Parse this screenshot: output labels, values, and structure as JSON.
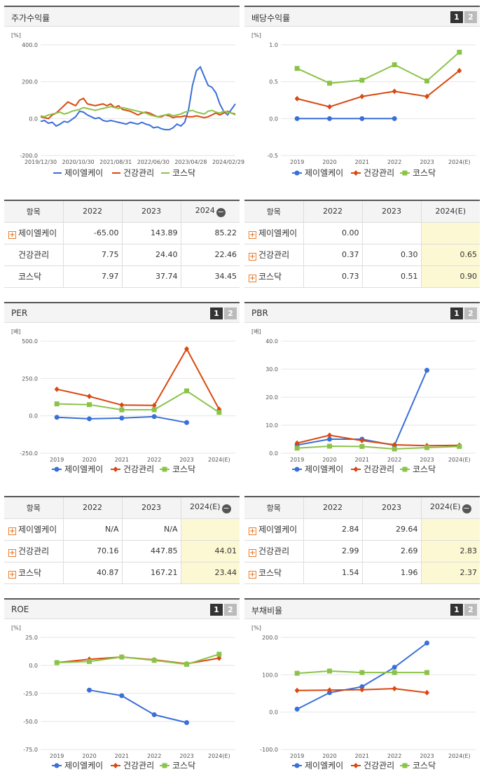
{
  "ui": {
    "btn1": "1",
    "btn2": "2",
    "pct_unit": "[%]",
    "times_unit": "[배]",
    "row_header": "항목",
    "plus": "+",
    "minus": "−"
  },
  "chart_data": [
    {
      "id": "stock",
      "type": "line",
      "title": "주가수익률",
      "yunit": "[%]",
      "ylim": [
        -200,
        400
      ],
      "yticks": [
        "400.0",
        "200.0",
        "0.0",
        "-200.0"
      ],
      "xticks": [
        "2019/12/30",
        "2020/10/30",
        "2021/08/31",
        "2022/06/30",
        "2023/04/28",
        "2024/02/29"
      ],
      "show_buttons": false,
      "series": [
        {
          "name": "제이엘케이",
          "color": "#3a6fd8",
          "marker": "none",
          "values": [
            -15,
            -10,
            -25,
            -20,
            -40,
            -30,
            -15,
            -20,
            -5,
            10,
            40,
            35,
            20,
            10,
            0,
            5,
            -10,
            -15,
            -10,
            -15,
            -20,
            -25,
            -30,
            -20,
            -25,
            -30,
            -20,
            -30,
            -35,
            -50,
            -45,
            -55,
            -60,
            -60,
            -50,
            -30,
            -40,
            -20,
            50,
            180,
            260,
            280,
            230,
            180,
            170,
            140,
            80,
            40,
            20,
            50,
            80
          ]
        },
        {
          "name": "건강관리",
          "color": "#d9480f",
          "marker": "none",
          "values": [
            10,
            5,
            0,
            20,
            30,
            50,
            70,
            90,
            80,
            70,
            100,
            110,
            80,
            75,
            70,
            75,
            80,
            70,
            80,
            60,
            70,
            50,
            45,
            40,
            30,
            20,
            30,
            35,
            30,
            20,
            10,
            10,
            20,
            15,
            5,
            10,
            10,
            15,
            10,
            10,
            15,
            10,
            5,
            10,
            20,
            30,
            20,
            30,
            40,
            30,
            25
          ]
        },
        {
          "name": "코스닥",
          "color": "#8bc34a",
          "marker": "none",
          "values": [
            15,
            10,
            20,
            25,
            30,
            35,
            25,
            30,
            40,
            45,
            50,
            60,
            55,
            50,
            45,
            50,
            55,
            60,
            65,
            60,
            55,
            60,
            55,
            50,
            45,
            40,
            35,
            30,
            20,
            15,
            10,
            15,
            20,
            25,
            15,
            20,
            25,
            35,
            40,
            45,
            35,
            30,
            25,
            40,
            45,
            35,
            30,
            40,
            35,
            30,
            20
          ]
        }
      ]
    },
    {
      "id": "dividend",
      "type": "line",
      "title": "배당수익률",
      "yunit": "[%]",
      "ylim": [
        -0.5,
        1.0
      ],
      "yticks": [
        "1.0",
        "0.5",
        "0.0",
        "-0.5"
      ],
      "xticks": [
        "2019",
        "2020",
        "2021",
        "2022",
        "2023",
        "2024(E)"
      ],
      "show_buttons": true,
      "series": [
        {
          "name": "제이엘케이",
          "color": "#3a6fd8",
          "marker": "circle",
          "values": [
            0,
            0,
            0,
            0,
            null,
            null
          ]
        },
        {
          "name": "건강관리",
          "color": "#d9480f",
          "marker": "diamond",
          "values": [
            0.27,
            0.16,
            0.3,
            0.37,
            0.3,
            0.65
          ]
        },
        {
          "name": "코스닥",
          "color": "#8bc34a",
          "marker": "square",
          "values": [
            0.68,
            0.48,
            0.52,
            0.73,
            0.51,
            0.9
          ]
        }
      ]
    },
    {
      "id": "per",
      "type": "line",
      "title": "PER",
      "yunit": "[배]",
      "ylim": [
        -250,
        500
      ],
      "yticks": [
        "500.0",
        "250.0",
        "0.0",
        "-250.0"
      ],
      "xticks": [
        "2019",
        "2020",
        "2021",
        "2022",
        "2023",
        "2024(E)"
      ],
      "show_buttons": true,
      "series": [
        {
          "name": "제이엘케이",
          "color": "#3a6fd8",
          "marker": "circle",
          "values": [
            -10,
            -20,
            -15,
            -5,
            -45,
            null
          ]
        },
        {
          "name": "건강관리",
          "color": "#d9480f",
          "marker": "diamond",
          "values": [
            178,
            130,
            72,
            70,
            448,
            44
          ]
        },
        {
          "name": "코스닥",
          "color": "#8bc34a",
          "marker": "square",
          "values": [
            80,
            75,
            40,
            41,
            167,
            23
          ]
        }
      ]
    },
    {
      "id": "pbr",
      "type": "line",
      "title": "PBR",
      "yunit": "[배]",
      "ylim": [
        0,
        40
      ],
      "yticks": [
        "40.0",
        "30.0",
        "20.0",
        "10.0",
        "0.0"
      ],
      "xticks": [
        "2019",
        "2020",
        "2021",
        "2022",
        "2023",
        "2024(E)"
      ],
      "show_buttons": true,
      "series": [
        {
          "name": "제이엘케이",
          "color": "#3a6fd8",
          "marker": "circle",
          "values": [
            2.9,
            5.0,
            5.0,
            2.8,
            29.6,
            null
          ]
        },
        {
          "name": "건강관리",
          "color": "#d9480f",
          "marker": "diamond",
          "values": [
            3.6,
            6.4,
            4.5,
            3.0,
            2.7,
            2.8
          ]
        },
        {
          "name": "코스닥",
          "color": "#8bc34a",
          "marker": "square",
          "values": [
            1.8,
            2.5,
            2.4,
            1.5,
            2.0,
            2.4
          ]
        }
      ]
    },
    {
      "id": "roe",
      "type": "line",
      "title": "ROE",
      "yunit": "[%]",
      "ylim": [
        -75,
        25
      ],
      "yticks": [
        "25.0",
        "0.0",
        "-25.0",
        "-50.0",
        "-75.0"
      ],
      "xticks": [
        "2019",
        "2020",
        "2021",
        "2022",
        "2023",
        "2024(E)"
      ],
      "show_buttons": true,
      "series": [
        {
          "name": "제이엘케이",
          "color": "#3a6fd8",
          "marker": "circle",
          "values": [
            null,
            -22,
            -27,
            -44,
            -51,
            null
          ]
        },
        {
          "name": "건강관리",
          "color": "#d9480f",
          "marker": "diamond",
          "values": [
            2.5,
            5.5,
            7.5,
            5.0,
            1.5,
            6.5
          ]
        },
        {
          "name": "코스닥",
          "color": "#8bc34a",
          "marker": "square",
          "values": [
            2.5,
            3.5,
            7.5,
            4.5,
            1.0,
            10.0
          ]
        }
      ]
    },
    {
      "id": "debt",
      "type": "line",
      "title": "부채비율",
      "yunit": "[%]",
      "ylim": [
        -100,
        200
      ],
      "yticks": [
        "200.0",
        "100.0",
        "0.0",
        "-100.0"
      ],
      "xticks": [
        "2019",
        "2020",
        "2021",
        "2022",
        "2023",
        "2024(E)"
      ],
      "show_buttons": true,
      "series": [
        {
          "name": "제이엘케이",
          "color": "#3a6fd8",
          "marker": "circle",
          "values": [
            8,
            52,
            68,
            120,
            185,
            null
          ]
        },
        {
          "name": "건강관리",
          "color": "#d9480f",
          "marker": "diamond",
          "values": [
            58,
            59,
            60,
            63,
            52,
            null
          ]
        },
        {
          "name": "코스닥",
          "color": "#8bc34a",
          "marker": "square",
          "values": [
            104,
            110,
            106,
            106,
            106,
            null
          ]
        }
      ]
    }
  ],
  "tables": [
    {
      "id": "t_stock",
      "cols": [
        "2022",
        "2023",
        "2024"
      ],
      "minus_col": 2,
      "highlight": false,
      "rows": [
        {
          "name": "제이엘케이",
          "plus": true,
          "vals": [
            "-65.00",
            "143.89",
            "85.22"
          ]
        },
        {
          "name": "건강관리",
          "plus": false,
          "vals": [
            "7.75",
            "24.40",
            "22.46"
          ]
        },
        {
          "name": "코스닥",
          "plus": false,
          "vals": [
            "7.97",
            "37.74",
            "34.45"
          ]
        }
      ]
    },
    {
      "id": "t_div",
      "cols": [
        "2022",
        "2023",
        "2024(E)"
      ],
      "minus_col": -1,
      "highlight": true,
      "rows": [
        {
          "name": "제이엘케이",
          "plus": true,
          "vals": [
            "0.00",
            "",
            ""
          ]
        },
        {
          "name": "건강관리",
          "plus": true,
          "vals": [
            "0.37",
            "0.30",
            "0.65"
          ]
        },
        {
          "name": "코스닥",
          "plus": true,
          "vals": [
            "0.73",
            "0.51",
            "0.90"
          ]
        }
      ]
    },
    {
      "id": "t_per",
      "cols": [
        "2022",
        "2023",
        "2024(E)"
      ],
      "minus_col": 2,
      "highlight": true,
      "rows": [
        {
          "name": "제이엘케이",
          "plus": true,
          "vals": [
            "N/A",
            "N/A",
            ""
          ]
        },
        {
          "name": "건강관리",
          "plus": true,
          "vals": [
            "70.16",
            "447.85",
            "44.01"
          ]
        },
        {
          "name": "코스닥",
          "plus": true,
          "vals": [
            "40.87",
            "167.21",
            "23.44"
          ]
        }
      ]
    },
    {
      "id": "t_pbr",
      "cols": [
        "2022",
        "2023",
        "2024(E)"
      ],
      "minus_col": 2,
      "highlight": true,
      "rows": [
        {
          "name": "제이엘케이",
          "plus": true,
          "vals": [
            "2.84",
            "29.64",
            ""
          ]
        },
        {
          "name": "건강관리",
          "plus": true,
          "vals": [
            "2.99",
            "2.69",
            "2.83"
          ]
        },
        {
          "name": "코스닥",
          "plus": true,
          "vals": [
            "1.54",
            "1.96",
            "2.37"
          ]
        }
      ]
    }
  ]
}
